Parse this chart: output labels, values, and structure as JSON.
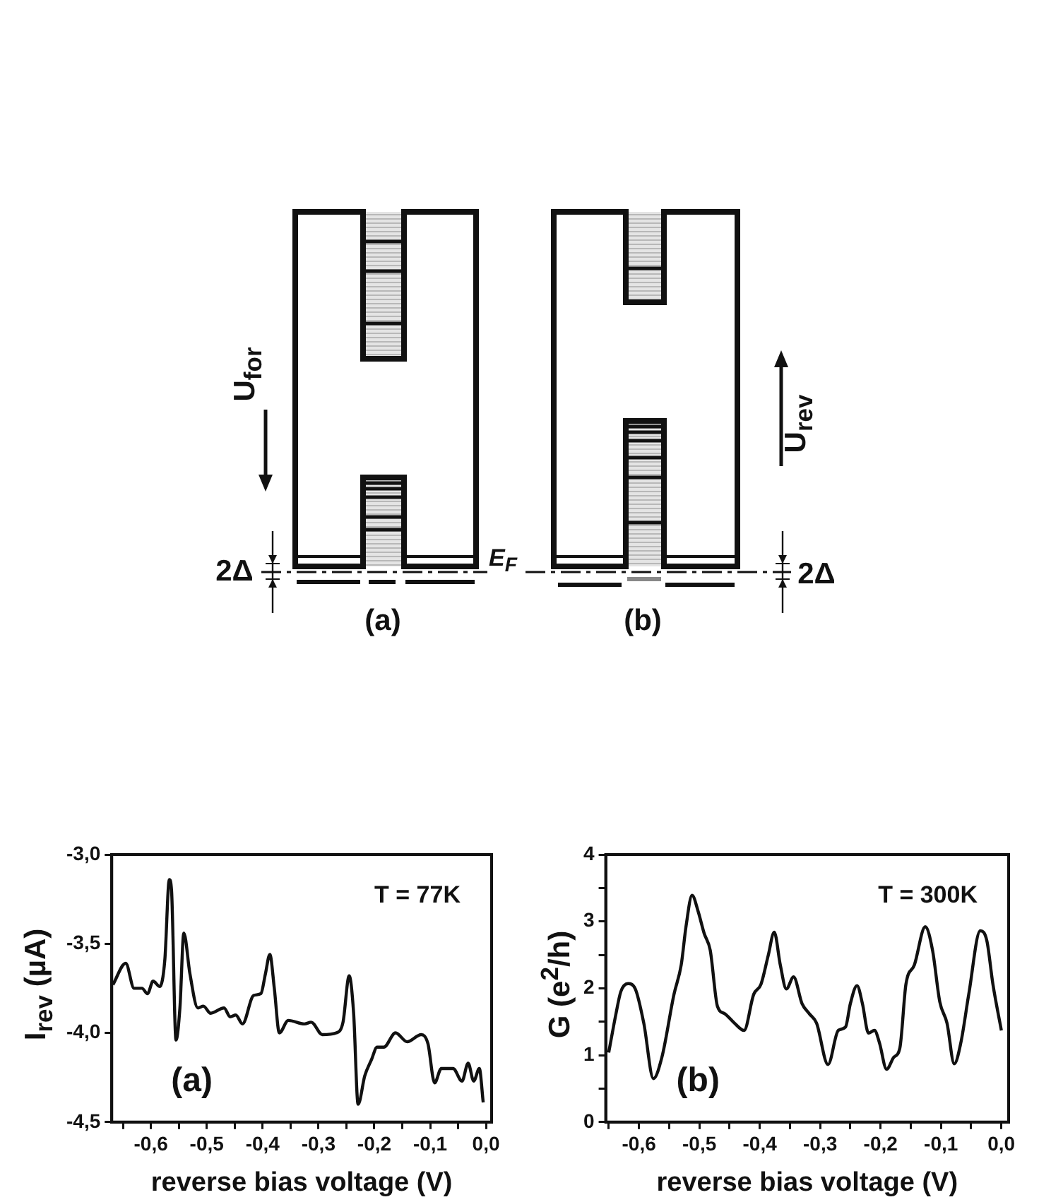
{
  "chart_data": [
    {
      "type": "other",
      "annotations": [
        "U$_{for}$",
        "2Δ",
        "(a)",
        "E$_{F}$",
        "(b)",
        "U$_{rev}$",
        "2Δ"
      ]
    },
    {
      "type": "line",
      "xlabel": "reverse bias voltage (V)",
      "ylabel": "I$_{rev}$ (µA)",
      "annotations": [
        "T = 77K",
        "(a)"
      ],
      "xlim": [
        -0.67,
        0.01
      ],
      "ylim": [
        -4.5,
        -3.0
      ],
      "xticks": [
        {
          "value": -0.65,
          "label": null
        },
        {
          "value": -0.6,
          "label": "-0,6"
        },
        {
          "value": -0.55,
          "label": null
        },
        {
          "value": -0.5,
          "label": "-0,5"
        },
        {
          "value": -0.45,
          "label": null
        },
        {
          "value": -0.4,
          "label": "-0,4"
        },
        {
          "value": -0.35,
          "label": null
        },
        {
          "value": -0.3,
          "label": "-0,3"
        },
        {
          "value": -0.25,
          "label": null
        },
        {
          "value": -0.2,
          "label": "-0,2"
        },
        {
          "value": -0.15,
          "label": null
        },
        {
          "value": -0.1,
          "label": "-0,1"
        },
        {
          "value": -0.05,
          "label": null
        },
        {
          "value": 0.0,
          "label": "0,0"
        }
      ],
      "yticks": [
        {
          "value": -4.5,
          "label": "-4,5"
        },
        {
          "value": -4.0,
          "label": "-4,0"
        },
        {
          "value": -3.5,
          "label": "-3,5"
        },
        {
          "value": -3.0,
          "label": "-3,0"
        }
      ],
      "series": [
        {
          "color": "#111111",
          "x": [
            -0.668,
            -0.645,
            -0.63,
            -0.616,
            -0.606,
            -0.596,
            -0.584,
            -0.575,
            -0.567,
            -0.563,
            -0.555,
            -0.548,
            -0.541,
            -0.53,
            -0.516,
            -0.506,
            -0.493,
            -0.469,
            -0.458,
            -0.448,
            -0.436,
            -0.416,
            -0.403,
            -0.395,
            -0.387,
            -0.379,
            -0.37,
            -0.354,
            -0.325,
            -0.313,
            -0.293,
            -0.268,
            -0.256,
            -0.245,
            -0.237,
            -0.229,
            -0.217,
            -0.205,
            -0.195,
            -0.183,
            -0.162,
            -0.141,
            -0.116,
            -0.104,
            -0.092,
            -0.08,
            -0.059,
            -0.043,
            -0.032,
            -0.022,
            -0.012,
            -0.005
          ],
          "values": [
            -3.73,
            -3.61,
            -3.75,
            -3.75,
            -3.78,
            -3.71,
            -3.74,
            -3.59,
            -3.14,
            -3.2,
            -4.04,
            -3.86,
            -3.44,
            -3.67,
            -3.86,
            -3.85,
            -3.89,
            -3.86,
            -3.91,
            -3.9,
            -3.95,
            -3.79,
            -3.78,
            -3.67,
            -3.56,
            -3.75,
            -4.0,
            -3.93,
            -3.95,
            -3.94,
            -4.01,
            -4.0,
            -3.94,
            -3.68,
            -3.89,
            -4.4,
            -4.24,
            -4.15,
            -4.08,
            -4.08,
            -4.0,
            -4.05,
            -4.01,
            -4.06,
            -4.28,
            -4.2,
            -4.2,
            -4.27,
            -4.17,
            -4.27,
            -4.2,
            -4.39
          ]
        }
      ]
    },
    {
      "type": "line",
      "xlabel": "reverse bias voltage (V)",
      "ylabel": "G (e$^{2}$/h)",
      "annotations": [
        "T = 300K",
        "(b)"
      ],
      "xlim": [
        -0.655,
        0.012
      ],
      "ylim": [
        0,
        4
      ],
      "xticks": [
        {
          "value": -0.65,
          "label": null
        },
        {
          "value": -0.6,
          "label": "-0,6"
        },
        {
          "value": -0.55,
          "label": null
        },
        {
          "value": -0.5,
          "label": "-0,5"
        },
        {
          "value": -0.45,
          "label": null
        },
        {
          "value": -0.4,
          "label": "-0,4"
        },
        {
          "value": -0.35,
          "label": null
        },
        {
          "value": -0.3,
          "label": "-0,3"
        },
        {
          "value": -0.25,
          "label": null
        },
        {
          "value": -0.2,
          "label": "-0,2"
        },
        {
          "value": -0.15,
          "label": null
        },
        {
          "value": -0.1,
          "label": "-0,1"
        },
        {
          "value": -0.05,
          "label": null
        },
        {
          "value": 0.0,
          "label": "0,0"
        }
      ],
      "yticks": [
        0,
        {
          "value": 0.5,
          "label": null
        },
        1,
        {
          "value": 1.5,
          "label": null
        },
        2,
        {
          "value": 2.5,
          "label": null
        },
        3,
        {
          "value": 3.5,
          "label": null
        },
        4
      ],
      "series": [
        {
          "color": "#111111",
          "x": [
            -0.65,
            -0.638,
            -0.63,
            -0.618,
            -0.606,
            -0.592,
            -0.576,
            -0.562,
            -0.542,
            -0.53,
            -0.522,
            -0.512,
            -0.502,
            -0.492,
            -0.482,
            -0.47,
            -0.458,
            -0.442,
            -0.426,
            -0.41,
            -0.398,
            -0.386,
            -0.376,
            -0.366,
            -0.356,
            -0.344,
            -0.33,
            -0.318,
            -0.306,
            -0.287,
            -0.27,
            -0.258,
            -0.25,
            -0.239,
            -0.23,
            -0.22,
            -0.21,
            -0.202,
            -0.19,
            -0.178,
            -0.168,
            -0.158,
            -0.144,
            -0.126,
            -0.114,
            -0.102,
            -0.09,
            -0.078,
            -0.067,
            -0.054,
            -0.035,
            -0.024,
            -0.014,
            0.0
          ],
          "values": [
            1.04,
            1.62,
            1.95,
            2.07,
            1.99,
            1.48,
            0.65,
            0.97,
            1.91,
            2.35,
            2.93,
            3.39,
            3.15,
            2.82,
            2.57,
            1.73,
            1.62,
            1.48,
            1.37,
            1.91,
            2.06,
            2.49,
            2.84,
            2.35,
            1.99,
            2.17,
            1.77,
            1.62,
            1.48,
            0.86,
            1.37,
            1.42,
            1.77,
            2.04,
            1.77,
            1.33,
            1.37,
            1.19,
            0.79,
            0.97,
            1.11,
            2.06,
            2.35,
            2.92,
            2.57,
            1.8,
            1.48,
            0.87,
            1.19,
            1.91,
            2.86,
            2.71,
            2.06,
            1.37
          ]
        }
      ]
    }
  ]
}
